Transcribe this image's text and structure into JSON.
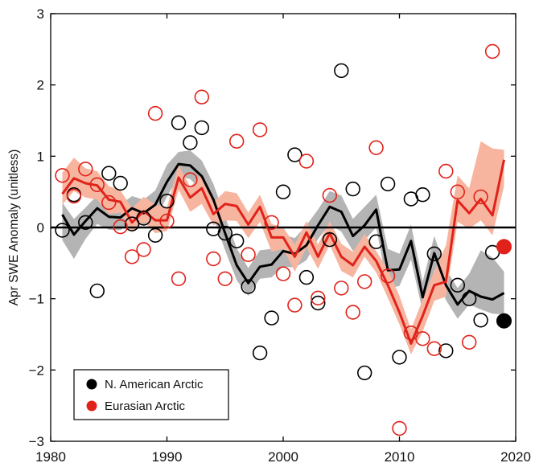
{
  "chart_data": {
    "type": "scatter",
    "title": "",
    "xlabel": "",
    "ylabel": "Apr SWE Anomaly (unitless)",
    "xlim": [
      1980,
      2020
    ],
    "ylim": [
      -3,
      3
    ],
    "xticks": [
      1980,
      1990,
      2000,
      2010,
      2020
    ],
    "xtick_labels": [
      "1980",
      "1990",
      "2000",
      "2010",
      "2020"
    ],
    "yticks": [
      3,
      2,
      1,
      0,
      -1,
      -2,
      -3
    ],
    "ytick_labels": [
      "3",
      "2",
      "1",
      "0",
      "−1",
      "−2",
      "−3"
    ],
    "zero_line": true,
    "grid": false,
    "legend_position": "bottom-left",
    "series": [
      {
        "name": "N. American Arctic",
        "color": "#000000",
        "band_color": "#b4b4b4",
        "x": [
          1981,
          1982,
          1983,
          1984,
          1985,
          1986,
          1987,
          1988,
          1989,
          1990,
          1991,
          1992,
          1993,
          1994,
          1995,
          1996,
          1997,
          1998,
          1999,
          2000,
          2001,
          2002,
          2003,
          2004,
          2005,
          2006,
          2007,
          2008,
          2009,
          2010,
          2011,
          2012,
          2013,
          2014,
          2015,
          2016,
          2017,
          2018,
          2019
        ],
        "points": [
          -0.04,
          0.46,
          0.07,
          -0.89,
          0.76,
          0.62,
          0.05,
          0.13,
          -0.11,
          0.37,
          1.47,
          1.19,
          1.4,
          -0.02,
          -0.08,
          -0.19,
          -0.83,
          -1.76,
          -1.27,
          0.5,
          1.02,
          -0.7,
          -1.06,
          -0.17,
          2.2,
          0.54,
          -2.04,
          -0.2,
          0.61,
          -1.82,
          0.4,
          0.46,
          -0.37,
          -1.73,
          -0.81,
          -1.0,
          -1.3,
          -0.35,
          -1.31
        ],
        "mean": [
          0.18,
          -0.1,
          0.09,
          0.27,
          0.15,
          0.14,
          0.27,
          0.2,
          0.32,
          0.64,
          0.89,
          0.87,
          0.72,
          0.39,
          -0.08,
          -0.53,
          -0.78,
          -0.55,
          -0.52,
          -0.33,
          -0.37,
          -0.25,
          0.03,
          0.29,
          0.22,
          -0.12,
          0.03,
          0.25,
          -0.6,
          -0.59,
          -0.19,
          -0.98,
          -0.36,
          -0.81,
          -1.08,
          -0.89,
          -0.97,
          -1.01,
          -0.92
        ],
        "band_lower": [
          -0.18,
          -0.44,
          -0.16,
          0.05,
          -0.03,
          -0.04,
          0.08,
          0.03,
          0.12,
          0.43,
          0.72,
          0.68,
          0.51,
          0.15,
          -0.32,
          -0.74,
          -0.96,
          -0.72,
          -0.7,
          -0.55,
          -0.56,
          -0.46,
          -0.16,
          0.04,
          -0.06,
          -0.33,
          -0.18,
          0.0,
          -0.86,
          -0.82,
          -0.45,
          -1.18,
          -0.6,
          -1.02,
          -1.28,
          -1.08,
          -1.15,
          -1.21,
          -1.22
        ],
        "band_upper": [
          0.35,
          0.12,
          0.28,
          0.45,
          0.32,
          0.32,
          0.44,
          0.39,
          0.52,
          0.88,
          1.06,
          1.08,
          0.94,
          0.61,
          0.15,
          -0.29,
          -0.57,
          -0.32,
          -0.3,
          -0.1,
          -0.15,
          0.03,
          0.25,
          0.51,
          0.45,
          0.12,
          0.29,
          0.46,
          -0.3,
          -0.37,
          0.04,
          -0.76,
          -0.12,
          -0.59,
          -0.85,
          -0.65,
          -0.32,
          -0.42,
          -0.62
        ],
        "highlight": {
          "x": 2019,
          "y": -1.31
        }
      },
      {
        "name": "Eurasian Arctic",
        "color": "#e0221a",
        "band_color": "#f7b5a0",
        "x": [
          1981,
          1982,
          1983,
          1984,
          1985,
          1986,
          1987,
          1988,
          1989,
          1990,
          1991,
          1992,
          1993,
          1994,
          1995,
          1996,
          1997,
          1998,
          1999,
          2000,
          2001,
          2002,
          2003,
          2004,
          2005,
          2006,
          2007,
          2008,
          2009,
          2010,
          2011,
          2012,
          2013,
          2014,
          2015,
          2016,
          2017,
          2018,
          2019
        ],
        "points": [
          0.73,
          0.44,
          0.82,
          0.6,
          0.35,
          0.01,
          -0.41,
          -0.31,
          1.6,
          0.09,
          -0.72,
          0.67,
          1.83,
          -0.44,
          -0.72,
          1.21,
          -0.38,
          1.37,
          0.07,
          -0.65,
          -1.09,
          0.93,
          -0.99,
          0.45,
          -0.85,
          -1.19,
          -0.76,
          1.12,
          -0.68,
          -2.82,
          -1.48,
          -1.56,
          -1.7,
          0.79,
          0.5,
          -1.61,
          0.43,
          2.47,
          -0.27
        ],
        "mean": [
          0.47,
          0.69,
          0.62,
          0.59,
          0.39,
          0.36,
          0.07,
          0.23,
          0.1,
          0.1,
          0.7,
          0.42,
          0.55,
          0.19,
          0.33,
          0.3,
          0.04,
          0.29,
          -0.14,
          -0.14,
          -0.41,
          -0.07,
          -0.41,
          -0.08,
          -0.41,
          -0.53,
          -0.27,
          -0.47,
          -0.81,
          -1.19,
          -1.63,
          -1.24,
          -0.81,
          -0.76,
          0.38,
          0.2,
          0.4,
          0.17,
          0.95
        ],
        "band_lower": [
          0.32,
          0.51,
          0.42,
          0.39,
          0.19,
          0.21,
          -0.07,
          0.08,
          -0.08,
          -0.05,
          0.53,
          0.22,
          0.33,
          0.03,
          0.1,
          0.09,
          -0.15,
          0.08,
          -0.34,
          -0.3,
          -0.62,
          -0.28,
          -0.58,
          -0.24,
          -0.61,
          -0.7,
          -0.41,
          -0.63,
          -0.99,
          -1.36,
          -1.78,
          -1.46,
          -1.03,
          -0.97,
          0.08,
          -0.02,
          0.1,
          -0.11,
          0.58
        ],
        "band_upper": [
          0.77,
          0.98,
          0.83,
          0.79,
          0.58,
          0.52,
          0.27,
          0.43,
          0.32,
          0.28,
          0.88,
          0.57,
          0.75,
          0.35,
          0.51,
          0.48,
          0.21,
          0.46,
          0.05,
          0.0,
          -0.24,
          0.09,
          -0.24,
          0.09,
          -0.23,
          -0.34,
          -0.09,
          -0.33,
          -0.59,
          -0.96,
          -1.43,
          -1.01,
          -0.61,
          -0.25,
          0.73,
          0.55,
          1.21,
          1.11,
          1.09
        ],
        "highlight": {
          "x": 2019,
          "y": -0.27
        }
      }
    ]
  }
}
